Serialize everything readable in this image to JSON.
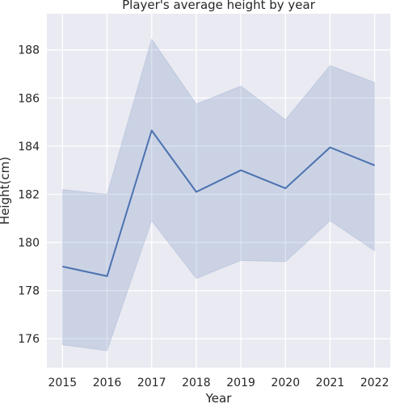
{
  "chart_data": {
    "type": "line",
    "title": "Player's average height by year",
    "xlabel": "Year",
    "ylabel": "Height(cm)",
    "x": [
      2015,
      2016,
      2017,
      2018,
      2019,
      2020,
      2021,
      2022
    ],
    "x_tick_labels": [
      "2015",
      "2016",
      "2017",
      "2018",
      "2019",
      "2020",
      "2021",
      "2022"
    ],
    "y_ticks": [
      176,
      178,
      180,
      182,
      184,
      186,
      188
    ],
    "y_tick_labels": [
      "176",
      "178",
      "180",
      "182",
      "184",
      "186",
      "188"
    ],
    "ylim": [
      174.8,
      189.5
    ],
    "xlim": [
      2014.65,
      2022.35
    ],
    "series": [
      {
        "values": [
          179.0,
          178.6,
          184.65,
          182.1,
          183.0,
          182.25,
          183.95,
          183.2
        ],
        "ci_lower": [
          175.75,
          175.5,
          180.9,
          178.5,
          179.25,
          179.2,
          180.9,
          179.65
        ],
        "ci_upper": [
          182.2,
          182.0,
          188.45,
          185.75,
          186.5,
          185.1,
          187.35,
          186.65
        ]
      }
    ],
    "grid": true,
    "colors": {
      "line": "#4c72b0",
      "band": "#4c72b0",
      "background": "#eaeaf2",
      "grid": "#ffffff"
    }
  }
}
